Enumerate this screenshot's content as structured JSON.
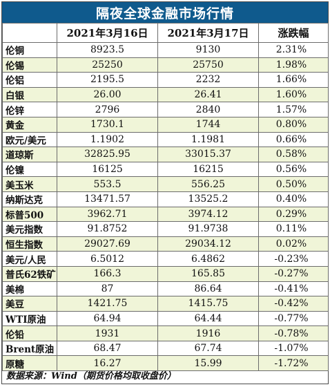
{
  "title": "隔夜全球金融市场行情",
  "headers": [
    "",
    "2021年3月16日",
    "2021年3月17日",
    "涨跌幅"
  ],
  "rows": [
    {
      "name": "伦铜",
      "d1": "8923.5",
      "d2": "9130",
      "chg": "2.31%"
    },
    {
      "name": "伦锡",
      "d1": "25250",
      "d2": "25750",
      "chg": "1.98%"
    },
    {
      "name": "伦铝",
      "d1": "2195.5",
      "d2": "2232",
      "chg": "1.66%"
    },
    {
      "name": "白银",
      "d1": "26.00",
      "d2": "26.41",
      "chg": "1.60%"
    },
    {
      "name": "伦锌",
      "d1": "2796",
      "d2": "2840",
      "chg": "1.57%"
    },
    {
      "name": "黄金",
      "d1": "1730.1",
      "d2": "1744",
      "chg": "0.80%"
    },
    {
      "name": "欧元/美元",
      "d1": "1.1902",
      "d2": "1.1981",
      "chg": "0.66%"
    },
    {
      "name": "道琼斯",
      "d1": "32825.95",
      "d2": "33015.37",
      "chg": "0.58%"
    },
    {
      "name": "伦镍",
      "d1": "16125",
      "d2": "16215",
      "chg": "0.56%"
    },
    {
      "name": "美玉米",
      "d1": "553.5",
      "d2": "556.25",
      "chg": "0.50%"
    },
    {
      "name": "纳斯达克",
      "d1": "13471.57",
      "d2": "13525.2",
      "chg": "0.40%"
    },
    {
      "name": "标普500",
      "d1": "3962.71",
      "d2": "3974.12",
      "chg": "0.29%"
    },
    {
      "name": "美元指数",
      "d1": "91.8752",
      "d2": "91.9738",
      "chg": "0.11%"
    },
    {
      "name": "恒生指数",
      "d1": "29027.69",
      "d2": "29034.12",
      "chg": "0.02%"
    },
    {
      "name": "美元/人民",
      "d1": "6.5012",
      "d2": "6.4862",
      "chg": "-0.23%"
    },
    {
      "name": "普氏62铁矿",
      "d1": "166.3",
      "d2": "165.85",
      "chg": "-0.27%"
    },
    {
      "name": "美棉",
      "d1": "87",
      "d2": "86.64",
      "chg": "-0.41%"
    },
    {
      "name": "美豆",
      "d1": "1421.75",
      "d2": "1415.75",
      "chg": "-0.42%"
    },
    {
      "name": "WTI原油",
      "d1": "64.94",
      "d2": "64.44",
      "chg": "-0.77%"
    },
    {
      "name": "伦铅",
      "d1": "1931",
      "d2": "1916",
      "chg": "-0.78%"
    },
    {
      "name": "Brent原油",
      "d1": "68.47",
      "d2": "67.74",
      "chg": "-1.07%"
    },
    {
      "name": "原糖",
      "d1": "16.27",
      "d2": "15.99",
      "chg": "-1.72%"
    }
  ],
  "source": "数据来源：Wind（期货价格均取收盘价）",
  "colors": {
    "title_bg": "#0f5a8d",
    "stripe": "#f0f5d8",
    "border": "#6b6b6b"
  }
}
